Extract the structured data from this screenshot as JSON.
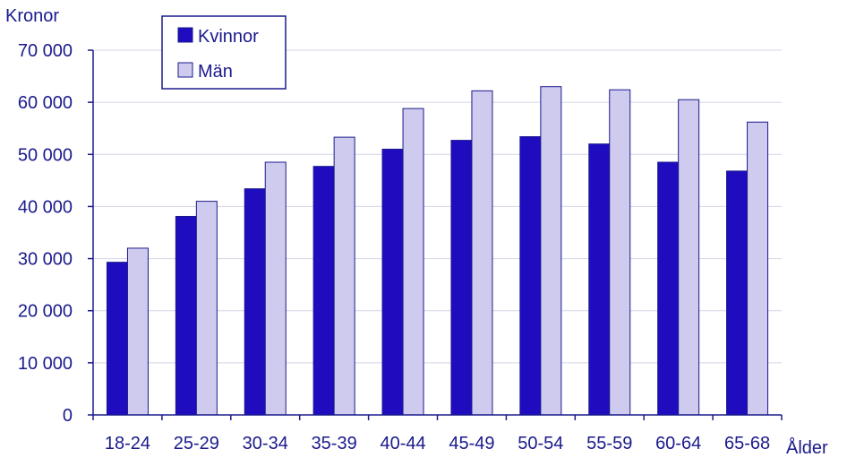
{
  "chart_data": {
    "type": "bar",
    "ylabel": "Kronor",
    "xlabel": "Ålder",
    "categories": [
      "18-24",
      "25-29",
      "30-34",
      "35-39",
      "40-44",
      "45-49",
      "50-54",
      "55-59",
      "60-64",
      "65-68"
    ],
    "series": [
      {
        "name": "Kvinnor",
        "color": "#1f0cbf",
        "values": [
          29300,
          38100,
          43400,
          47700,
          51000,
          52700,
          53400,
          52000,
          48500,
          46800
        ]
      },
      {
        "name": "Män",
        "color": "#cfcbef",
        "values": [
          32000,
          41000,
          48500,
          53300,
          58800,
          62200,
          63000,
          62400,
          60500,
          56200
        ]
      }
    ],
    "yticks": [
      "0",
      "10 000",
      "20 000",
      "30 000",
      "40 000",
      "50 000",
      "60 000",
      "70 000"
    ],
    "ylim": [
      0,
      70000
    ],
    "grid": true,
    "legend_position": "top-left"
  }
}
